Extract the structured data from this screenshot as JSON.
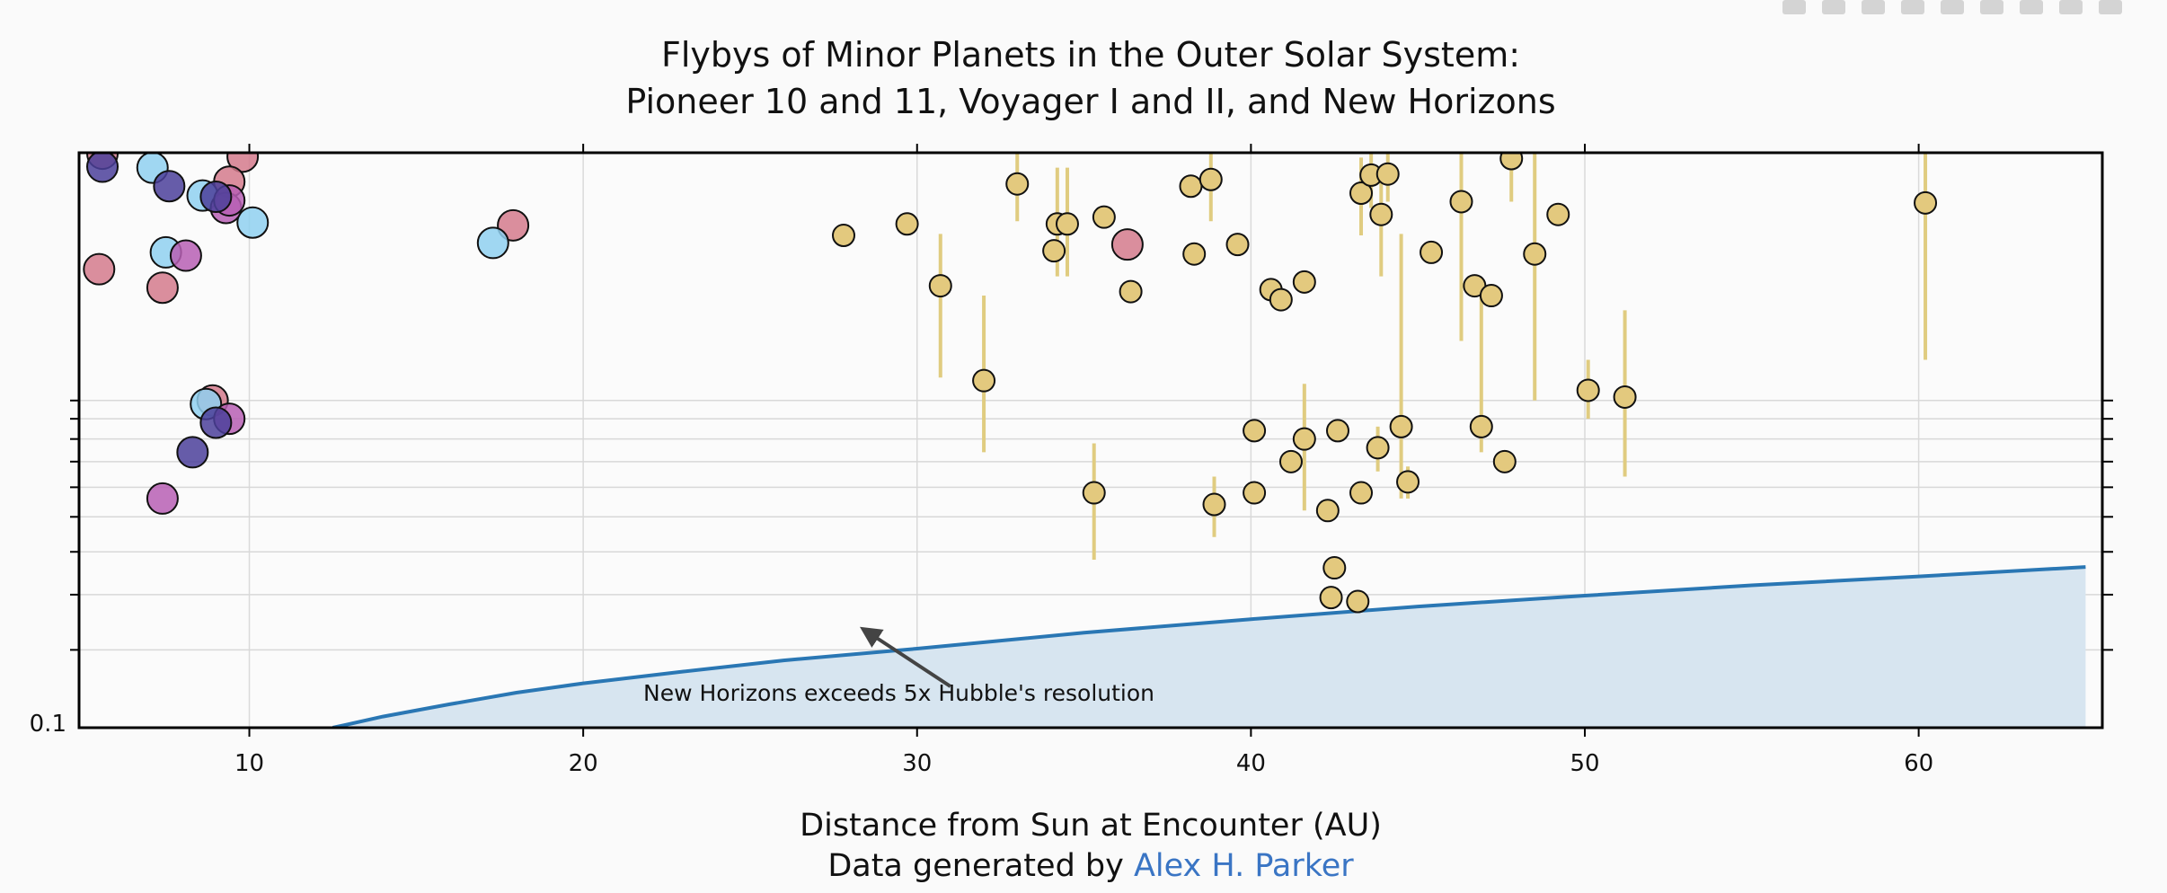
{
  "chart_data": {
    "type": "scatter",
    "title_line1": "Flybys of Minor Planets in the Outer Solar System:",
    "title_line2": "Pioneer 10 and 11, Voyager I and II, and New Horizons",
    "xlabel": "Distance from Sun at Encounter (AU)",
    "credit_prefix": "Data generated by ",
    "credit_link": "Alex H. Parker",
    "xlim": [
      4.9,
      65.5
    ],
    "ylog": true,
    "ylim": [
      0.1,
      2.0
    ],
    "grid": true,
    "x_ticks": [
      10,
      20,
      30,
      40,
      50,
      60
    ],
    "x_tick_labels": [
      "10",
      "20",
      "30",
      "40",
      "50",
      "60"
    ],
    "y_grid": [
      0.15,
      0.2,
      0.25,
      0.3,
      0.35,
      0.4,
      0.45,
      0.5,
      0.55
    ],
    "y_tick_label": "0.1",
    "annotation": {
      "text": "New Horizons exceeds 5x Hubble's resolution",
      "text_x": 21.8,
      "text_y": 0.115,
      "arrow_from_x": 31.0,
      "arrow_from_y": 0.124,
      "arrow_to_x": 28.5,
      "arrow_to_y": 0.165
    },
    "colors": {
      "pioneer_pink": "#d47a8c",
      "voyager_light": "#8fd0f0",
      "voyager_dark": "#4b3f9a",
      "magenta": "#b75fb4",
      "new_horizons": "#e3c97e",
      "errorbar": "#e0cc80",
      "curve": "#2a77b4",
      "fill": "#d7e5f0"
    },
    "curve": {
      "name": "",
      "x": [
        12.5,
        14,
        16,
        18,
        20,
        23,
        26,
        30,
        35,
        40,
        45,
        50,
        55,
        60,
        65
      ],
      "y": [
        0.1,
        0.106,
        0.113,
        0.12,
        0.126,
        0.134,
        0.142,
        0.151,
        0.164,
        0.176,
        0.188,
        0.199,
        0.21,
        0.22,
        0.231
      ]
    },
    "series": [
      {
        "name": "",
        "color": "#d47a8c",
        "points": [
          {
            "x": 5.6,
            "y": 1.99
          },
          {
            "x": 9.8,
            "y": 1.96
          },
          {
            "x": 9.4,
            "y": 1.72
          },
          {
            "x": 17.9,
            "y": 1.37
          },
          {
            "x": 36.3,
            "y": 1.24
          },
          {
            "x": 5.5,
            "y": 1.09
          },
          {
            "x": 7.4,
            "y": 0.99
          },
          {
            "x": 8.9,
            "y": 0.55
          }
        ]
      },
      {
        "name": "",
        "color": "#8fd0f0",
        "points": [
          {
            "x": 7.1,
            "y": 1.85
          },
          {
            "x": 8.6,
            "y": 1.6
          },
          {
            "x": 10.1,
            "y": 1.39
          },
          {
            "x": 17.3,
            "y": 1.25
          },
          {
            "x": 7.5,
            "y": 1.19
          },
          {
            "x": 8.7,
            "y": 0.54
          }
        ]
      },
      {
        "name": "",
        "color": "#b75fb4",
        "points": [
          {
            "x": 9.3,
            "y": 1.5
          },
          {
            "x": 9.4,
            "y": 1.56
          },
          {
            "x": 8.1,
            "y": 1.17
          },
          {
            "x": 9.4,
            "y": 0.5
          },
          {
            "x": 7.4,
            "y": 0.33
          }
        ]
      },
      {
        "name": "",
        "color": "#4b3f9a",
        "points": [
          {
            "x": 5.6,
            "y": 1.86
          },
          {
            "x": 7.6,
            "y": 1.68
          },
          {
            "x": 9.0,
            "y": 1.59
          },
          {
            "x": 9.0,
            "y": 0.49
          },
          {
            "x": 8.3,
            "y": 0.42
          }
        ]
      },
      {
        "name": "",
        "color": "#e3c97e",
        "points": [
          {
            "x": 27.8,
            "y": 1.3
          },
          {
            "x": 29.7,
            "y": 1.38
          },
          {
            "x": 30.7,
            "y": 1.0,
            "err": [
              0.62,
              1.31
            ]
          },
          {
            "x": 32.0,
            "y": 0.61,
            "err": [
              0.42,
              0.95
            ]
          },
          {
            "x": 33.0,
            "y": 1.7,
            "err": [
              1.4,
              2.0
            ]
          },
          {
            "x": 34.2,
            "y": 1.38,
            "err": [
              1.05,
              1.85
            ]
          },
          {
            "x": 34.5,
            "y": 1.38,
            "err": [
              1.05,
              1.85
            ]
          },
          {
            "x": 34.1,
            "y": 1.2
          },
          {
            "x": 35.6,
            "y": 1.43
          },
          {
            "x": 36.4,
            "y": 0.97
          },
          {
            "x": 35.3,
            "y": 0.34,
            "err": [
              0.24,
              0.44
            ]
          },
          {
            "x": 38.2,
            "y": 1.68
          },
          {
            "x": 38.8,
            "y": 1.74,
            "err": [
              1.4,
              2.0
            ]
          },
          {
            "x": 38.3,
            "y": 1.18,
            "err": [
              1.12,
              1.24
            ]
          },
          {
            "x": 39.6,
            "y": 1.24
          },
          {
            "x": 38.9,
            "y": 0.32,
            "err": [
              0.27,
              0.37
            ]
          },
          {
            "x": 40.1,
            "y": 0.47
          },
          {
            "x": 40.1,
            "y": 0.34
          },
          {
            "x": 40.6,
            "y": 0.98
          },
          {
            "x": 40.9,
            "y": 0.93
          },
          {
            "x": 41.2,
            "y": 0.4
          },
          {
            "x": 41.6,
            "y": 1.02,
            "err": [
              0.96,
              1.08
            ]
          },
          {
            "x": 41.6,
            "y": 0.45,
            "err": [
              0.31,
              0.6
            ]
          },
          {
            "x": 42.3,
            "y": 0.31
          },
          {
            "x": 42.5,
            "y": 0.23
          },
          {
            "x": 42.4,
            "y": 0.197
          },
          {
            "x": 43.2,
            "y": 0.193
          },
          {
            "x": 42.6,
            "y": 0.47
          },
          {
            "x": 43.3,
            "y": 1.62,
            "err": [
              1.3,
              1.95
            ]
          },
          {
            "x": 43.6,
            "y": 1.78,
            "err": [
              1.5,
              2.0
            ]
          },
          {
            "x": 43.9,
            "y": 1.45,
            "err": [
              1.05,
              1.8
            ]
          },
          {
            "x": 44.1,
            "y": 1.79,
            "err": [
              1.55,
              2.0
            ]
          },
          {
            "x": 43.8,
            "y": 0.43,
            "err": [
              0.38,
              0.48
            ]
          },
          {
            "x": 43.3,
            "y": 0.34
          },
          {
            "x": 44.5,
            "y": 0.48,
            "err": [
              0.33,
              1.31
            ]
          },
          {
            "x": 44.7,
            "y": 0.36,
            "err": [
              0.33,
              0.39
            ]
          },
          {
            "x": 45.4,
            "y": 1.19
          },
          {
            "x": 46.3,
            "y": 1.55,
            "err": [
              0.75,
              2.0
            ]
          },
          {
            "x": 46.7,
            "y": 1.0
          },
          {
            "x": 46.9,
            "y": 0.48,
            "err": [
              0.42,
              1.0
            ]
          },
          {
            "x": 47.2,
            "y": 0.95
          },
          {
            "x": 47.6,
            "y": 0.4
          },
          {
            "x": 47.8,
            "y": 1.94,
            "err": [
              1.55,
              2.0
            ]
          },
          {
            "x": 48.5,
            "y": 1.18,
            "err": [
              0.55,
              2.0
            ]
          },
          {
            "x": 49.2,
            "y": 1.45
          },
          {
            "x": 50.1,
            "y": 0.58,
            "err": [
              0.5,
              0.68
            ]
          },
          {
            "x": 51.2,
            "y": 0.56,
            "err": [
              0.37,
              0.88
            ]
          },
          {
            "x": 60.2,
            "y": 1.54,
            "err": [
              0.68,
              2.0
            ]
          }
        ]
      }
    ]
  },
  "modebar": {
    "icons": [
      "camera-icon",
      "zoom-icon",
      "pan-icon",
      "box-select-icon",
      "lasso-icon",
      "zoom-in-icon",
      "zoom-out-icon",
      "autoscale-icon",
      "home-icon"
    ]
  }
}
